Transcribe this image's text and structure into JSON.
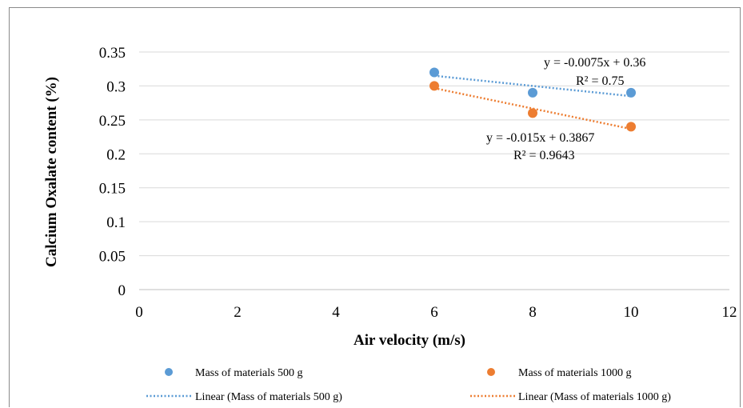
{
  "chart_data": {
    "type": "scatter",
    "xlabel": "Air velocity (m/s)",
    "ylabel": "Calcium Oxalate content (%)",
    "xlim": [
      0,
      12
    ],
    "ylim": [
      0,
      0.35
    ],
    "x_ticks": [
      "0",
      "2",
      "4",
      "6",
      "8",
      "10",
      "12"
    ],
    "y_ticks": [
      "0",
      "0.05",
      "0.1",
      "0.15",
      "0.2",
      "0.25",
      "0.3",
      "0.35"
    ],
    "grid": "horizontal",
    "legend_position": "bottom",
    "series": [
      {
        "name": "Mass of materials 500 g",
        "color": "#5b9bd5",
        "x": [
          6,
          8,
          10
        ],
        "y": [
          0.32,
          0.29,
          0.29
        ],
        "trendline": {
          "name": "Linear (Mass of materials 500 g)",
          "slope": -0.0075,
          "intercept": 0.36,
          "equation": "y = -0.0075x + 0.36",
          "r2": "R² = 0.75"
        }
      },
      {
        "name": "Mass of materials 1000 g",
        "color": "#ed7d31",
        "x": [
          6,
          8,
          10
        ],
        "y": [
          0.3,
          0.26,
          0.24
        ],
        "trendline": {
          "name": "Linear (Mass of materials 1000 g)",
          "slope": -0.015,
          "intercept": 0.3867,
          "equation": "y = -0.015x + 0.3867",
          "r2": "R² = 0.9643"
        }
      }
    ]
  }
}
